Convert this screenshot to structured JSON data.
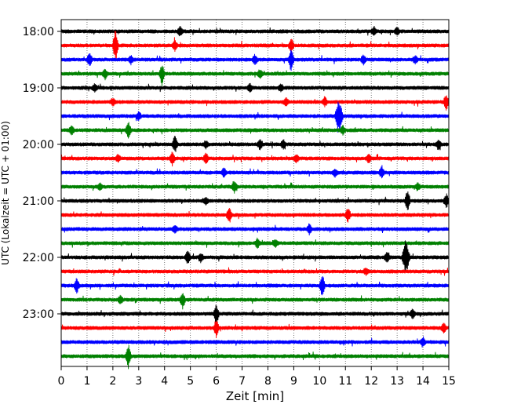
{
  "chart_data": {
    "type": "line",
    "title": "",
    "xlabel": "Zeit  [min]",
    "ylabel": "UTC (Lokalzeit = UTC + 01:00)",
    "xlim": [
      0,
      15
    ],
    "x_ticks": [
      "0",
      "1",
      "2",
      "3",
      "4",
      "5",
      "6",
      "7",
      "8",
      "9",
      "10",
      "11",
      "12",
      "13",
      "14",
      "15"
    ],
    "y_tick_labels": [
      "18:00",
      "19:00",
      "20:00",
      "21:00",
      "22:00",
      "23:00"
    ],
    "grid": "vertical dotted lines at each minute",
    "line_colors": [
      "#000000",
      "#ff0000",
      "#0000ff",
      "#008000"
    ],
    "traces": [
      {
        "start": "18:00",
        "events": [
          {
            "t": 4.6,
            "amp": 0.3
          },
          {
            "t": 12.1,
            "amp": 0.3
          },
          {
            "t": 13.0,
            "amp": 0.25
          }
        ]
      },
      {
        "start": "18:15",
        "events": [
          {
            "t": 2.1,
            "amp": 1.3
          },
          {
            "t": 4.4,
            "amp": 0.35
          },
          {
            "t": 8.9,
            "amp": 0.5
          }
        ]
      },
      {
        "start": "18:30",
        "events": [
          {
            "t": 1.1,
            "amp": 0.5
          },
          {
            "t": 2.7,
            "amp": 0.3
          },
          {
            "t": 7.5,
            "amp": 0.35
          },
          {
            "t": 8.9,
            "amp": 0.8
          },
          {
            "t": 11.7,
            "amp": 0.35
          },
          {
            "t": 13.7,
            "amp": 0.3
          }
        ]
      },
      {
        "start": "18:45",
        "events": [
          {
            "t": 1.7,
            "amp": 0.35
          },
          {
            "t": 3.9,
            "amp": 0.8
          },
          {
            "t": 7.7,
            "amp": 0.3
          }
        ]
      },
      {
        "start": "19:00",
        "events": [
          {
            "t": 1.3,
            "amp": 0.25
          },
          {
            "t": 7.3,
            "amp": 0.3
          },
          {
            "t": 8.5,
            "amp": 0.25
          }
        ]
      },
      {
        "start": "19:15",
        "events": [
          {
            "t": 2.0,
            "amp": 0.25
          },
          {
            "t": 8.7,
            "amp": 0.3
          },
          {
            "t": 10.2,
            "amp": 0.35
          },
          {
            "t": 14.9,
            "amp": 0.6
          }
        ]
      },
      {
        "start": "19:30",
        "events": [
          {
            "t": 3.0,
            "amp": 0.3
          },
          {
            "t": 10.7,
            "amp": 1.0
          },
          {
            "t": 10.8,
            "amp": 0.8
          }
        ]
      },
      {
        "start": "19:45",
        "events": [
          {
            "t": 0.4,
            "amp": 0.3
          },
          {
            "t": 2.6,
            "amp": 0.6
          },
          {
            "t": 10.9,
            "amp": 0.3
          }
        ]
      },
      {
        "start": "20:00",
        "events": [
          {
            "t": 4.4,
            "amp": 0.6
          },
          {
            "t": 5.6,
            "amp": 0.25
          },
          {
            "t": 7.7,
            "amp": 0.4
          },
          {
            "t": 8.6,
            "amp": 0.35
          },
          {
            "t": 14.6,
            "amp": 0.35
          }
        ]
      },
      {
        "start": "20:15",
        "events": [
          {
            "t": 2.2,
            "amp": 0.25
          },
          {
            "t": 4.3,
            "amp": 0.45
          },
          {
            "t": 5.6,
            "amp": 0.35
          },
          {
            "t": 9.1,
            "amp": 0.3
          },
          {
            "t": 11.9,
            "amp": 0.3
          }
        ]
      },
      {
        "start": "20:30",
        "events": [
          {
            "t": 6.3,
            "amp": 0.3
          },
          {
            "t": 10.6,
            "amp": 0.25
          },
          {
            "t": 12.4,
            "amp": 0.4
          }
        ]
      },
      {
        "start": "20:45",
        "events": [
          {
            "t": 1.5,
            "amp": 0.25
          },
          {
            "t": 6.7,
            "amp": 0.45
          },
          {
            "t": 13.8,
            "amp": 0.25
          }
        ]
      },
      {
        "start": "21:00",
        "events": [
          {
            "t": 5.6,
            "amp": 0.25
          },
          {
            "t": 13.4,
            "amp": 0.8
          },
          {
            "t": 14.9,
            "amp": 0.5
          }
        ]
      },
      {
        "start": "21:15",
        "events": [
          {
            "t": 6.5,
            "amp": 0.5
          },
          {
            "t": 11.1,
            "amp": 0.5
          }
        ]
      },
      {
        "start": "21:30",
        "events": [
          {
            "t": 4.4,
            "amp": 0.25
          },
          {
            "t": 9.6,
            "amp": 0.35
          }
        ]
      },
      {
        "start": "21:45",
        "events": [
          {
            "t": 7.6,
            "amp": 0.35
          },
          {
            "t": 8.3,
            "amp": 0.3
          }
        ]
      },
      {
        "start": "22:00",
        "events": [
          {
            "t": 4.9,
            "amp": 0.45
          },
          {
            "t": 5.4,
            "amp": 0.3
          },
          {
            "t": 12.6,
            "amp": 0.35
          },
          {
            "t": 13.3,
            "amp": 1.1
          },
          {
            "t": 13.4,
            "amp": 0.7
          }
        ]
      },
      {
        "start": "22:15",
        "events": [
          {
            "t": 11.8,
            "amp": 0.25
          }
        ]
      },
      {
        "start": "22:30",
        "events": [
          {
            "t": 0.6,
            "amp": 0.5
          },
          {
            "t": 10.1,
            "amp": 0.9
          }
        ]
      },
      {
        "start": "22:45",
        "events": [
          {
            "t": 2.3,
            "amp": 0.25
          },
          {
            "t": 4.7,
            "amp": 0.6
          }
        ]
      },
      {
        "start": "23:00",
        "events": [
          {
            "t": 6.0,
            "amp": 0.8
          },
          {
            "t": 13.6,
            "amp": 0.3
          }
        ]
      },
      {
        "start": "23:15",
        "events": [
          {
            "t": 6.0,
            "amp": 0.6
          },
          {
            "t": 14.8,
            "amp": 0.4
          }
        ]
      },
      {
        "start": "23:30",
        "events": [
          {
            "t": 14.0,
            "amp": 0.35
          }
        ]
      },
      {
        "start": "23:45",
        "events": [
          {
            "t": 2.6,
            "amp": 0.8
          }
        ]
      }
    ]
  }
}
